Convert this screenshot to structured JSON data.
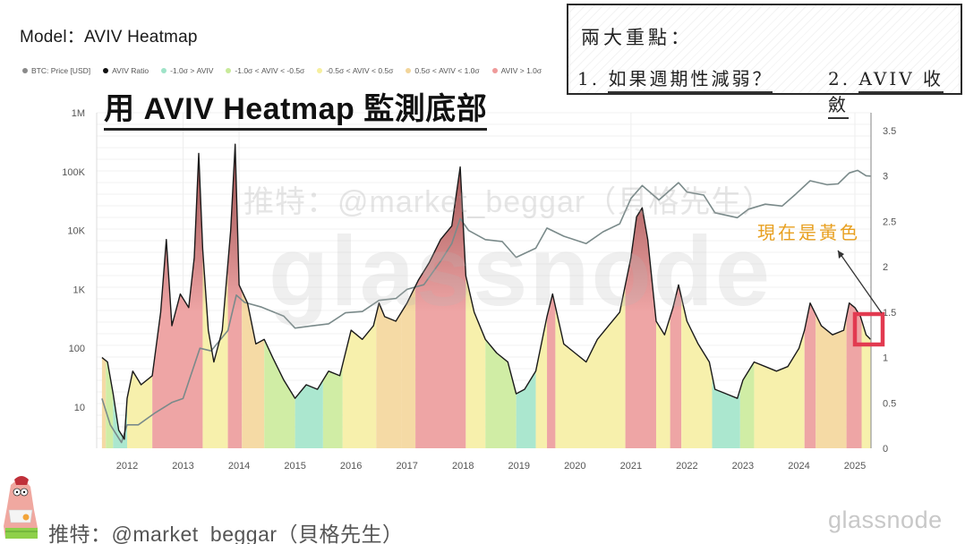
{
  "header": {
    "model_title": "Model：AVIV Heatmap",
    "main_heading": "用 AVIV Heatmap 監測底部"
  },
  "legend": {
    "items": [
      {
        "label": "BTC: Price [USD]",
        "color": "#8a8a8a"
      },
      {
        "label": "AVIV Ratio",
        "color": "#111111"
      },
      {
        "label": "-1.0σ > AVIV",
        "color": "#9fe3c8"
      },
      {
        "label": "-1.0σ < AVIV < -0.5σ",
        "color": "#c8ea9a"
      },
      {
        "label": "-0.5σ < AVIV < 0.5σ",
        "color": "#f6ef9e"
      },
      {
        "label": "0.5σ < AVIV < 1.0σ",
        "color": "#f2d59a"
      },
      {
        "label": "AVIV > 1.0σ",
        "color": "#ef9a9a"
      }
    ]
  },
  "note_box": {
    "heading": "兩大重點：",
    "point1_num": "1.",
    "point1_text": "如果週期性減弱？",
    "point2_num": "2.",
    "point2_text": "AVIV 收斂"
  },
  "annotation": {
    "text": "現在是黃色",
    "highlight_color": "#e23a50"
  },
  "watermark": {
    "handle": "推特：@market_beggar（貝格先生）",
    "logo": "glassnode"
  },
  "footer": {
    "handle": "推特：@market_beggar（貝格先生）",
    "logo": "glassnode"
  },
  "colors": {
    "band_below_neg1": "#a6e6cc",
    "band_neg1_neg05": "#cdeca0",
    "band_neg05_05": "#f7efa8",
    "band_05_1": "#f4d8a0",
    "band_above_1": "#eda0a0",
    "price_line": "#7a8a8a",
    "aviv_line": "#1a1a1a",
    "aviv_peak_fill": "#7a2a2a"
  },
  "chart_data": {
    "type": "area",
    "title": "AVIV Heatmap",
    "xlabel": "",
    "ylabel_left": "BTC: Price [USD] (log)",
    "ylabel_right": "AVIV Ratio",
    "x_ticks": [
      "2012",
      "2013",
      "2014",
      "2015",
      "2016",
      "2017",
      "2018",
      "2019",
      "2020",
      "2021",
      "2022",
      "2023",
      "2024",
      "2025"
    ],
    "y_left_ticks": [
      "10",
      "100",
      "1K",
      "10K",
      "100K",
      "1M"
    ],
    "y_left_range": [
      2,
      1000000
    ],
    "y_right_ticks": [
      "0",
      "0.5",
      "1",
      "1.5",
      "2",
      "2.5",
      "3",
      "3.5"
    ],
    "y_right_range": [
      0,
      3.5
    ],
    "grid": true,
    "legend_position": "top",
    "series": [
      {
        "name": "AVIV Ratio",
        "axis": "right",
        "points": [
          [
            2011.55,
            1.0
          ],
          [
            2011.65,
            0.95
          ],
          [
            2011.75,
            0.6
          ],
          [
            2011.85,
            0.2
          ],
          [
            2011.95,
            0.1
          ],
          [
            2012.0,
            0.55
          ],
          [
            2012.1,
            0.85
          ],
          [
            2012.25,
            0.7
          ],
          [
            2012.45,
            0.8
          ],
          [
            2012.6,
            1.5
          ],
          [
            2012.7,
            2.3
          ],
          [
            2012.8,
            1.35
          ],
          [
            2012.95,
            1.7
          ],
          [
            2013.1,
            1.55
          ],
          [
            2013.2,
            2.1
          ],
          [
            2013.28,
            3.25
          ],
          [
            2013.35,
            2.2
          ],
          [
            2013.45,
            1.3
          ],
          [
            2013.55,
            0.95
          ],
          [
            2013.7,
            1.3
          ],
          [
            2013.85,
            2.4
          ],
          [
            2013.93,
            3.35
          ],
          [
            2014.0,
            1.8
          ],
          [
            2014.15,
            1.6
          ],
          [
            2014.3,
            1.15
          ],
          [
            2014.45,
            1.2
          ],
          [
            2014.6,
            1.0
          ],
          [
            2014.8,
            0.75
          ],
          [
            2015.0,
            0.55
          ],
          [
            2015.2,
            0.7
          ],
          [
            2015.4,
            0.65
          ],
          [
            2015.6,
            0.85
          ],
          [
            2015.8,
            0.8
          ],
          [
            2016.0,
            1.3
          ],
          [
            2016.2,
            1.2
          ],
          [
            2016.4,
            1.35
          ],
          [
            2016.5,
            1.6
          ],
          [
            2016.6,
            1.45
          ],
          [
            2016.8,
            1.4
          ],
          [
            2017.0,
            1.6
          ],
          [
            2017.2,
            1.85
          ],
          [
            2017.4,
            2.05
          ],
          [
            2017.6,
            2.3
          ],
          [
            2017.8,
            2.45
          ],
          [
            2017.95,
            3.1
          ],
          [
            2018.05,
            1.9
          ],
          [
            2018.2,
            1.5
          ],
          [
            2018.4,
            1.2
          ],
          [
            2018.6,
            1.05
          ],
          [
            2018.8,
            0.95
          ],
          [
            2018.95,
            0.6
          ],
          [
            2019.1,
            0.65
          ],
          [
            2019.3,
            0.85
          ],
          [
            2019.5,
            1.45
          ],
          [
            2019.6,
            1.7
          ],
          [
            2019.8,
            1.15
          ],
          [
            2020.0,
            1.05
          ],
          [
            2020.2,
            0.95
          ],
          [
            2020.4,
            1.2
          ],
          [
            2020.6,
            1.35
          ],
          [
            2020.8,
            1.5
          ],
          [
            2021.0,
            2.1
          ],
          [
            2021.1,
            2.55
          ],
          [
            2021.2,
            2.65
          ],
          [
            2021.3,
            2.3
          ],
          [
            2021.45,
            1.4
          ],
          [
            2021.6,
            1.25
          ],
          [
            2021.75,
            1.55
          ],
          [
            2021.85,
            1.8
          ],
          [
            2022.0,
            1.4
          ],
          [
            2022.2,
            1.15
          ],
          [
            2022.4,
            0.95
          ],
          [
            2022.5,
            0.65
          ],
          [
            2022.7,
            0.6
          ],
          [
            2022.9,
            0.55
          ],
          [
            2023.0,
            0.75
          ],
          [
            2023.2,
            0.95
          ],
          [
            2023.4,
            0.9
          ],
          [
            2023.6,
            0.85
          ],
          [
            2023.8,
            0.9
          ],
          [
            2024.0,
            1.1
          ],
          [
            2024.1,
            1.3
          ],
          [
            2024.2,
            1.6
          ],
          [
            2024.4,
            1.35
          ],
          [
            2024.6,
            1.25
          ],
          [
            2024.8,
            1.3
          ],
          [
            2024.9,
            1.6
          ],
          [
            2025.0,
            1.55
          ],
          [
            2025.1,
            1.45
          ],
          [
            2025.2,
            1.25
          ],
          [
            2025.28,
            1.2
          ]
        ]
      },
      {
        "name": "BTC: Price [USD]",
        "axis": "left",
        "points": [
          [
            2011.55,
            14
          ],
          [
            2011.7,
            5
          ],
          [
            2011.9,
            2.5
          ],
          [
            2012.0,
            5
          ],
          [
            2012.2,
            5
          ],
          [
            2012.5,
            8
          ],
          [
            2012.8,
            12
          ],
          [
            2013.0,
            14
          ],
          [
            2013.3,
            100
          ],
          [
            2013.5,
            90
          ],
          [
            2013.8,
            200
          ],
          [
            2013.95,
            800
          ],
          [
            2014.1,
            600
          ],
          [
            2014.4,
            500
          ],
          [
            2014.8,
            350
          ],
          [
            2015.0,
            220
          ],
          [
            2015.3,
            240
          ],
          [
            2015.6,
            260
          ],
          [
            2015.9,
            400
          ],
          [
            2016.2,
            420
          ],
          [
            2016.5,
            650
          ],
          [
            2016.8,
            700
          ],
          [
            2017.0,
            1000
          ],
          [
            2017.3,
            1200
          ],
          [
            2017.6,
            3000
          ],
          [
            2017.8,
            6000
          ],
          [
            2017.95,
            16000
          ],
          [
            2018.1,
            10000
          ],
          [
            2018.4,
            7000
          ],
          [
            2018.7,
            6500
          ],
          [
            2018.95,
            3500
          ],
          [
            2019.3,
            5000
          ],
          [
            2019.5,
            11000
          ],
          [
            2019.8,
            8000
          ],
          [
            2020.2,
            6000
          ],
          [
            2020.5,
            9500
          ],
          [
            2020.8,
            13000
          ],
          [
            2021.0,
            35000
          ],
          [
            2021.2,
            58000
          ],
          [
            2021.5,
            33000
          ],
          [
            2021.85,
            65000
          ],
          [
            2022.0,
            45000
          ],
          [
            2022.3,
            40000
          ],
          [
            2022.5,
            20000
          ],
          [
            2022.9,
            16500
          ],
          [
            2023.1,
            23000
          ],
          [
            2023.4,
            28000
          ],
          [
            2023.7,
            26000
          ],
          [
            2023.95,
            42000
          ],
          [
            2024.2,
            70000
          ],
          [
            2024.5,
            60000
          ],
          [
            2024.7,
            62000
          ],
          [
            2024.9,
            95000
          ],
          [
            2025.05,
            105000
          ],
          [
            2025.2,
            85000
          ],
          [
            2025.28,
            84000
          ]
        ]
      }
    ],
    "bands": [
      {
        "from": 2011.5,
        "to": 2011.62,
        "zone": "0.5σ<AVIV<1.0σ"
      },
      {
        "from": 2011.62,
        "to": 2011.75,
        "zone": "-1.0σ<AVIV<-0.5σ"
      },
      {
        "from": 2011.75,
        "to": 2012.0,
        "zone": "-1.0σ>AVIV"
      },
      {
        "from": 2012.0,
        "to": 2012.45,
        "zone": "-0.5σ<AVIV<0.5σ"
      },
      {
        "from": 2012.45,
        "to": 2013.35,
        "zone": "AVIV>1.0σ"
      },
      {
        "from": 2013.35,
        "to": 2013.8,
        "zone": "-0.5σ<AVIV<0.5σ"
      },
      {
        "from": 2013.8,
        "to": 2014.05,
        "zone": "AVIV>1.0σ"
      },
      {
        "from": 2014.05,
        "to": 2014.45,
        "zone": "0.5σ<AVIV<1.0σ"
      },
      {
        "from": 2014.45,
        "to": 2015.0,
        "zone": "-1.0σ<AVIV<-0.5σ"
      },
      {
        "from": 2015.0,
        "to": 2015.5,
        "zone": "-1.0σ>AVIV"
      },
      {
        "from": 2015.5,
        "to": 2015.85,
        "zone": "-1.0σ<AVIV<-0.5σ"
      },
      {
        "from": 2015.85,
        "to": 2016.45,
        "zone": "-0.5σ<AVIV<0.5σ"
      },
      {
        "from": 2016.45,
        "to": 2016.9,
        "zone": "0.5σ<AVIV<1.0σ"
      },
      {
        "from": 2016.9,
        "to": 2017.15,
        "zone": "0.5σ<AVIV<1.0σ"
      },
      {
        "from": 2017.15,
        "to": 2018.05,
        "zone": "AVIV>1.0σ"
      },
      {
        "from": 2018.05,
        "to": 2018.4,
        "zone": "-0.5σ<AVIV<0.5σ"
      },
      {
        "from": 2018.4,
        "to": 2018.95,
        "zone": "-1.0σ<AVIV<-0.5σ"
      },
      {
        "from": 2018.95,
        "to": 2019.3,
        "zone": "-1.0σ>AVIV"
      },
      {
        "from": 2019.3,
        "to": 2019.5,
        "zone": "-0.5σ<AVIV<0.5σ"
      },
      {
        "from": 2019.5,
        "to": 2019.65,
        "zone": "AVIV>1.0σ"
      },
      {
        "from": 2019.65,
        "to": 2020.9,
        "zone": "-0.5σ<AVIV<0.5σ"
      },
      {
        "from": 2020.9,
        "to": 2021.45,
        "zone": "AVIV>1.0σ"
      },
      {
        "from": 2021.45,
        "to": 2021.7,
        "zone": "-0.5σ<AVIV<0.5σ"
      },
      {
        "from": 2021.7,
        "to": 2021.9,
        "zone": "AVIV>1.0σ"
      },
      {
        "from": 2021.9,
        "to": 2022.45,
        "zone": "-0.5σ<AVIV<0.5σ"
      },
      {
        "from": 2022.45,
        "to": 2022.95,
        "zone": "-1.0σ>AVIV"
      },
      {
        "from": 2022.95,
        "to": 2023.2,
        "zone": "-1.0σ<AVIV<-0.5σ"
      },
      {
        "from": 2023.2,
        "to": 2024.1,
        "zone": "-0.5σ<AVIV<0.5σ"
      },
      {
        "from": 2024.1,
        "to": 2024.3,
        "zone": "AVIV>1.0σ"
      },
      {
        "from": 2024.3,
        "to": 2024.85,
        "zone": "0.5σ<AVIV<1.0σ"
      },
      {
        "from": 2024.85,
        "to": 2025.12,
        "zone": "AVIV>1.0σ"
      },
      {
        "from": 2025.12,
        "to": 2025.3,
        "zone": "-0.5σ<AVIV<0.5σ"
      }
    ],
    "annotations": [
      {
        "text": "現在是黃色",
        "target_x": 2025.25,
        "target_y_right": 1.3
      }
    ]
  }
}
